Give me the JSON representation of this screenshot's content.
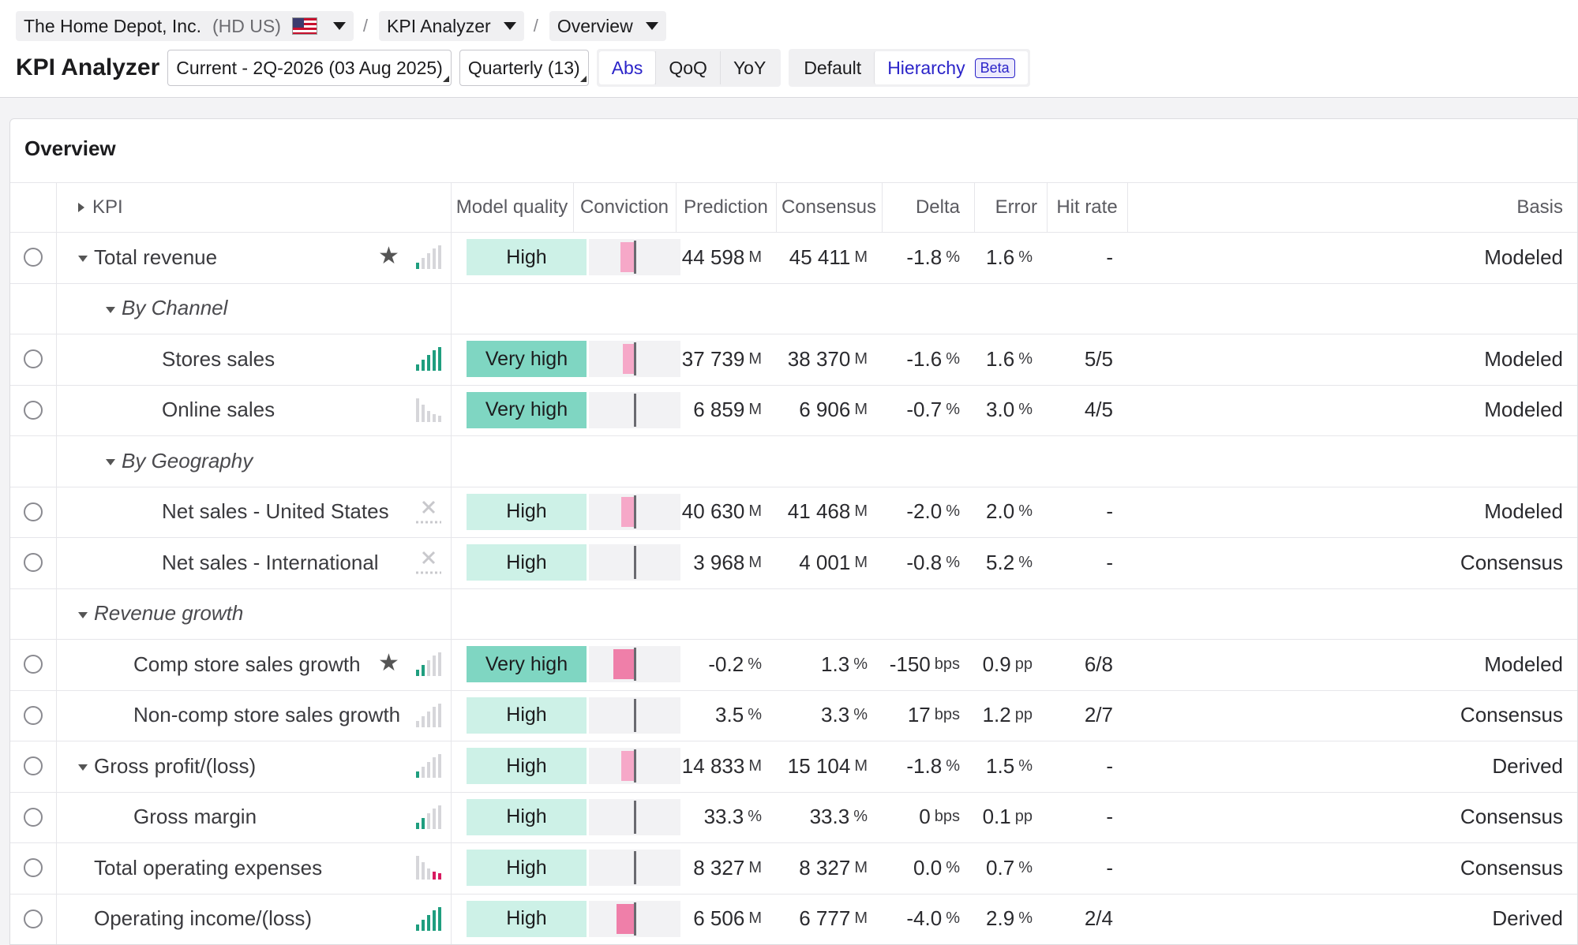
{
  "breadcrumb": {
    "company": "The Home Depot, Inc.",
    "ticker": "(HD US)",
    "module": "KPI Analyzer",
    "view": "Overview"
  },
  "toolbar": {
    "app_title": "KPI Analyzer",
    "period": "Current - 2Q-2026 (03 Aug 2025)",
    "frequency": "Quarterly (13)",
    "modes": [
      "Abs",
      "QoQ",
      "YoY"
    ],
    "active_mode": "Abs",
    "views": [
      "Default",
      "Hierarchy"
    ],
    "active_view": "Hierarchy",
    "beta_label": "Beta"
  },
  "card": {
    "title": "Overview"
  },
  "table": {
    "headers": {
      "kpi": "KPI",
      "model_quality": "Model quality",
      "conviction": "Conviction",
      "prediction": "Prediction",
      "consensus": "Consensus",
      "delta": "Delta",
      "error": "Error",
      "hit_rate": "Hit rate",
      "basis": "Basis"
    },
    "rows": [
      {
        "type": "kpi",
        "indent": 0,
        "expand": "down",
        "name": "Total revenue",
        "star": true,
        "signal": "bars",
        "signal_level": 1,
        "signal_colors": [
          "g",
          "n",
          "n",
          "n",
          "n"
        ],
        "quality": "High",
        "conviction": -0.3,
        "prediction": "44 598",
        "prediction_unit": "M",
        "consensus": "45 411",
        "consensus_unit": "M",
        "delta": "-1.8",
        "delta_unit": "%",
        "error": "1.6",
        "error_unit": "%",
        "hit_rate": "-",
        "basis": "Modeled"
      },
      {
        "type": "group",
        "indent": 1,
        "name": "By Channel"
      },
      {
        "type": "kpi",
        "indent": 2,
        "name": "Stores sales",
        "signal": "bars",
        "signal_colors": [
          "g",
          "g",
          "g",
          "g",
          "g"
        ],
        "quality": "Very high",
        "conviction": -0.25,
        "prediction": "37 739",
        "prediction_unit": "M",
        "consensus": "38 370",
        "consensus_unit": "M",
        "delta": "-1.6",
        "delta_unit": "%",
        "error": "1.6",
        "error_unit": "%",
        "hit_rate": "5/5",
        "basis": "Modeled"
      },
      {
        "type": "kpi",
        "indent": 2,
        "name": "Online sales",
        "signal": "bars-desc",
        "signal_colors": [
          "n",
          "n",
          "n",
          "n",
          "n"
        ],
        "quality": "Very high",
        "conviction": 0,
        "prediction": "6 859",
        "prediction_unit": "M",
        "consensus": "6 906",
        "consensus_unit": "M",
        "delta": "-0.7",
        "delta_unit": "%",
        "error": "3.0",
        "error_unit": "%",
        "hit_rate": "4/5",
        "basis": "Modeled"
      },
      {
        "type": "group",
        "indent": 1,
        "name": "By Geography"
      },
      {
        "type": "kpi",
        "indent": 2,
        "name": "Net sales - United States",
        "signal": "x",
        "quality": "High",
        "conviction": -0.28,
        "prediction": "40 630",
        "prediction_unit": "M",
        "consensus": "41 468",
        "consensus_unit": "M",
        "delta": "-2.0",
        "delta_unit": "%",
        "error": "2.0",
        "error_unit": "%",
        "hit_rate": "-",
        "basis": "Modeled"
      },
      {
        "type": "kpi",
        "indent": 2,
        "name": "Net sales - International",
        "signal": "x",
        "quality": "High",
        "conviction": 0,
        "prediction": "3 968",
        "prediction_unit": "M",
        "consensus": "4 001",
        "consensus_unit": "M",
        "delta": "-0.8",
        "delta_unit": "%",
        "error": "5.2",
        "error_unit": "%",
        "hit_rate": "-",
        "basis": "Consensus"
      },
      {
        "type": "group",
        "indent": 0,
        "name": "Revenue growth"
      },
      {
        "type": "kpi",
        "indent": 1,
        "name": "Comp store sales growth",
        "star": true,
        "signal": "bars",
        "signal_colors": [
          "g",
          "g",
          "n",
          "n",
          "n"
        ],
        "quality": "Very high",
        "conviction": -0.45,
        "prediction": "-0.2",
        "prediction_unit": "%",
        "consensus": "1.3",
        "consensus_unit": "%",
        "delta": "-150",
        "delta_unit": "bps",
        "error": "0.9",
        "error_unit": "pp",
        "hit_rate": "6/8",
        "basis": "Modeled"
      },
      {
        "type": "kpi",
        "indent": 1,
        "name": "Non-comp store sales growth",
        "signal": "bars",
        "signal_colors": [
          "n",
          "n",
          "n",
          "n",
          "n"
        ],
        "quality": "High",
        "conviction": 0,
        "prediction": "3.5",
        "prediction_unit": "%",
        "consensus": "3.3",
        "consensus_unit": "%",
        "delta": "17",
        "delta_unit": "bps",
        "error": "1.2",
        "error_unit": "pp",
        "hit_rate": "2/7",
        "basis": "Consensus"
      },
      {
        "type": "kpi",
        "indent": 0,
        "expand": "down",
        "name": "Gross profit/(loss)",
        "signal": "bars",
        "signal_colors": [
          "g",
          "n",
          "n",
          "n",
          "n"
        ],
        "quality": "High",
        "conviction": -0.28,
        "prediction": "14 833",
        "prediction_unit": "M",
        "consensus": "15 104",
        "consensus_unit": "M",
        "delta": "-1.8",
        "delta_unit": "%",
        "error": "1.5",
        "error_unit": "%",
        "hit_rate": "-",
        "basis": "Derived"
      },
      {
        "type": "kpi",
        "indent": 1,
        "name": "Gross margin",
        "signal": "bars",
        "signal_colors": [
          "g",
          "g",
          "n",
          "n",
          "n"
        ],
        "quality": "High",
        "conviction": 0,
        "prediction": "33.3",
        "prediction_unit": "%",
        "consensus": "33.3",
        "consensus_unit": "%",
        "delta": "0",
        "delta_unit": "bps",
        "error": "0.1",
        "error_unit": "pp",
        "hit_rate": "-",
        "basis": "Consensus"
      },
      {
        "type": "kpi",
        "indent": 0,
        "name": "Total operating expenses",
        "signal": "bars-desc",
        "signal_colors": [
          "n",
          "n",
          "n",
          "r",
          "r"
        ],
        "quality": "High",
        "conviction": 0,
        "prediction": "8 327",
        "prediction_unit": "M",
        "consensus": "8 327",
        "consensus_unit": "M",
        "delta": "0.0",
        "delta_unit": "%",
        "error": "0.7",
        "error_unit": "%",
        "hit_rate": "-",
        "basis": "Consensus"
      },
      {
        "type": "kpi",
        "indent": 0,
        "name": "Operating income/(loss)",
        "signal": "bars",
        "signal_colors": [
          "g",
          "g",
          "g",
          "g",
          "g"
        ],
        "quality": "High",
        "conviction": -0.38,
        "prediction": "6 506",
        "prediction_unit": "M",
        "consensus": "6 777",
        "consensus_unit": "M",
        "delta": "-4.0",
        "delta_unit": "%",
        "error": "2.9",
        "error_unit": "%",
        "hit_rate": "2/4",
        "basis": "Derived"
      }
    ]
  },
  "colors": {
    "accent": "#2b24c9",
    "quality_high": "#cdf1e7",
    "quality_very_high": "#7fd6c2",
    "conviction_fill": "#f6a8c8",
    "signal_green": "#1f9e7f",
    "signal_red": "#d81b60"
  }
}
